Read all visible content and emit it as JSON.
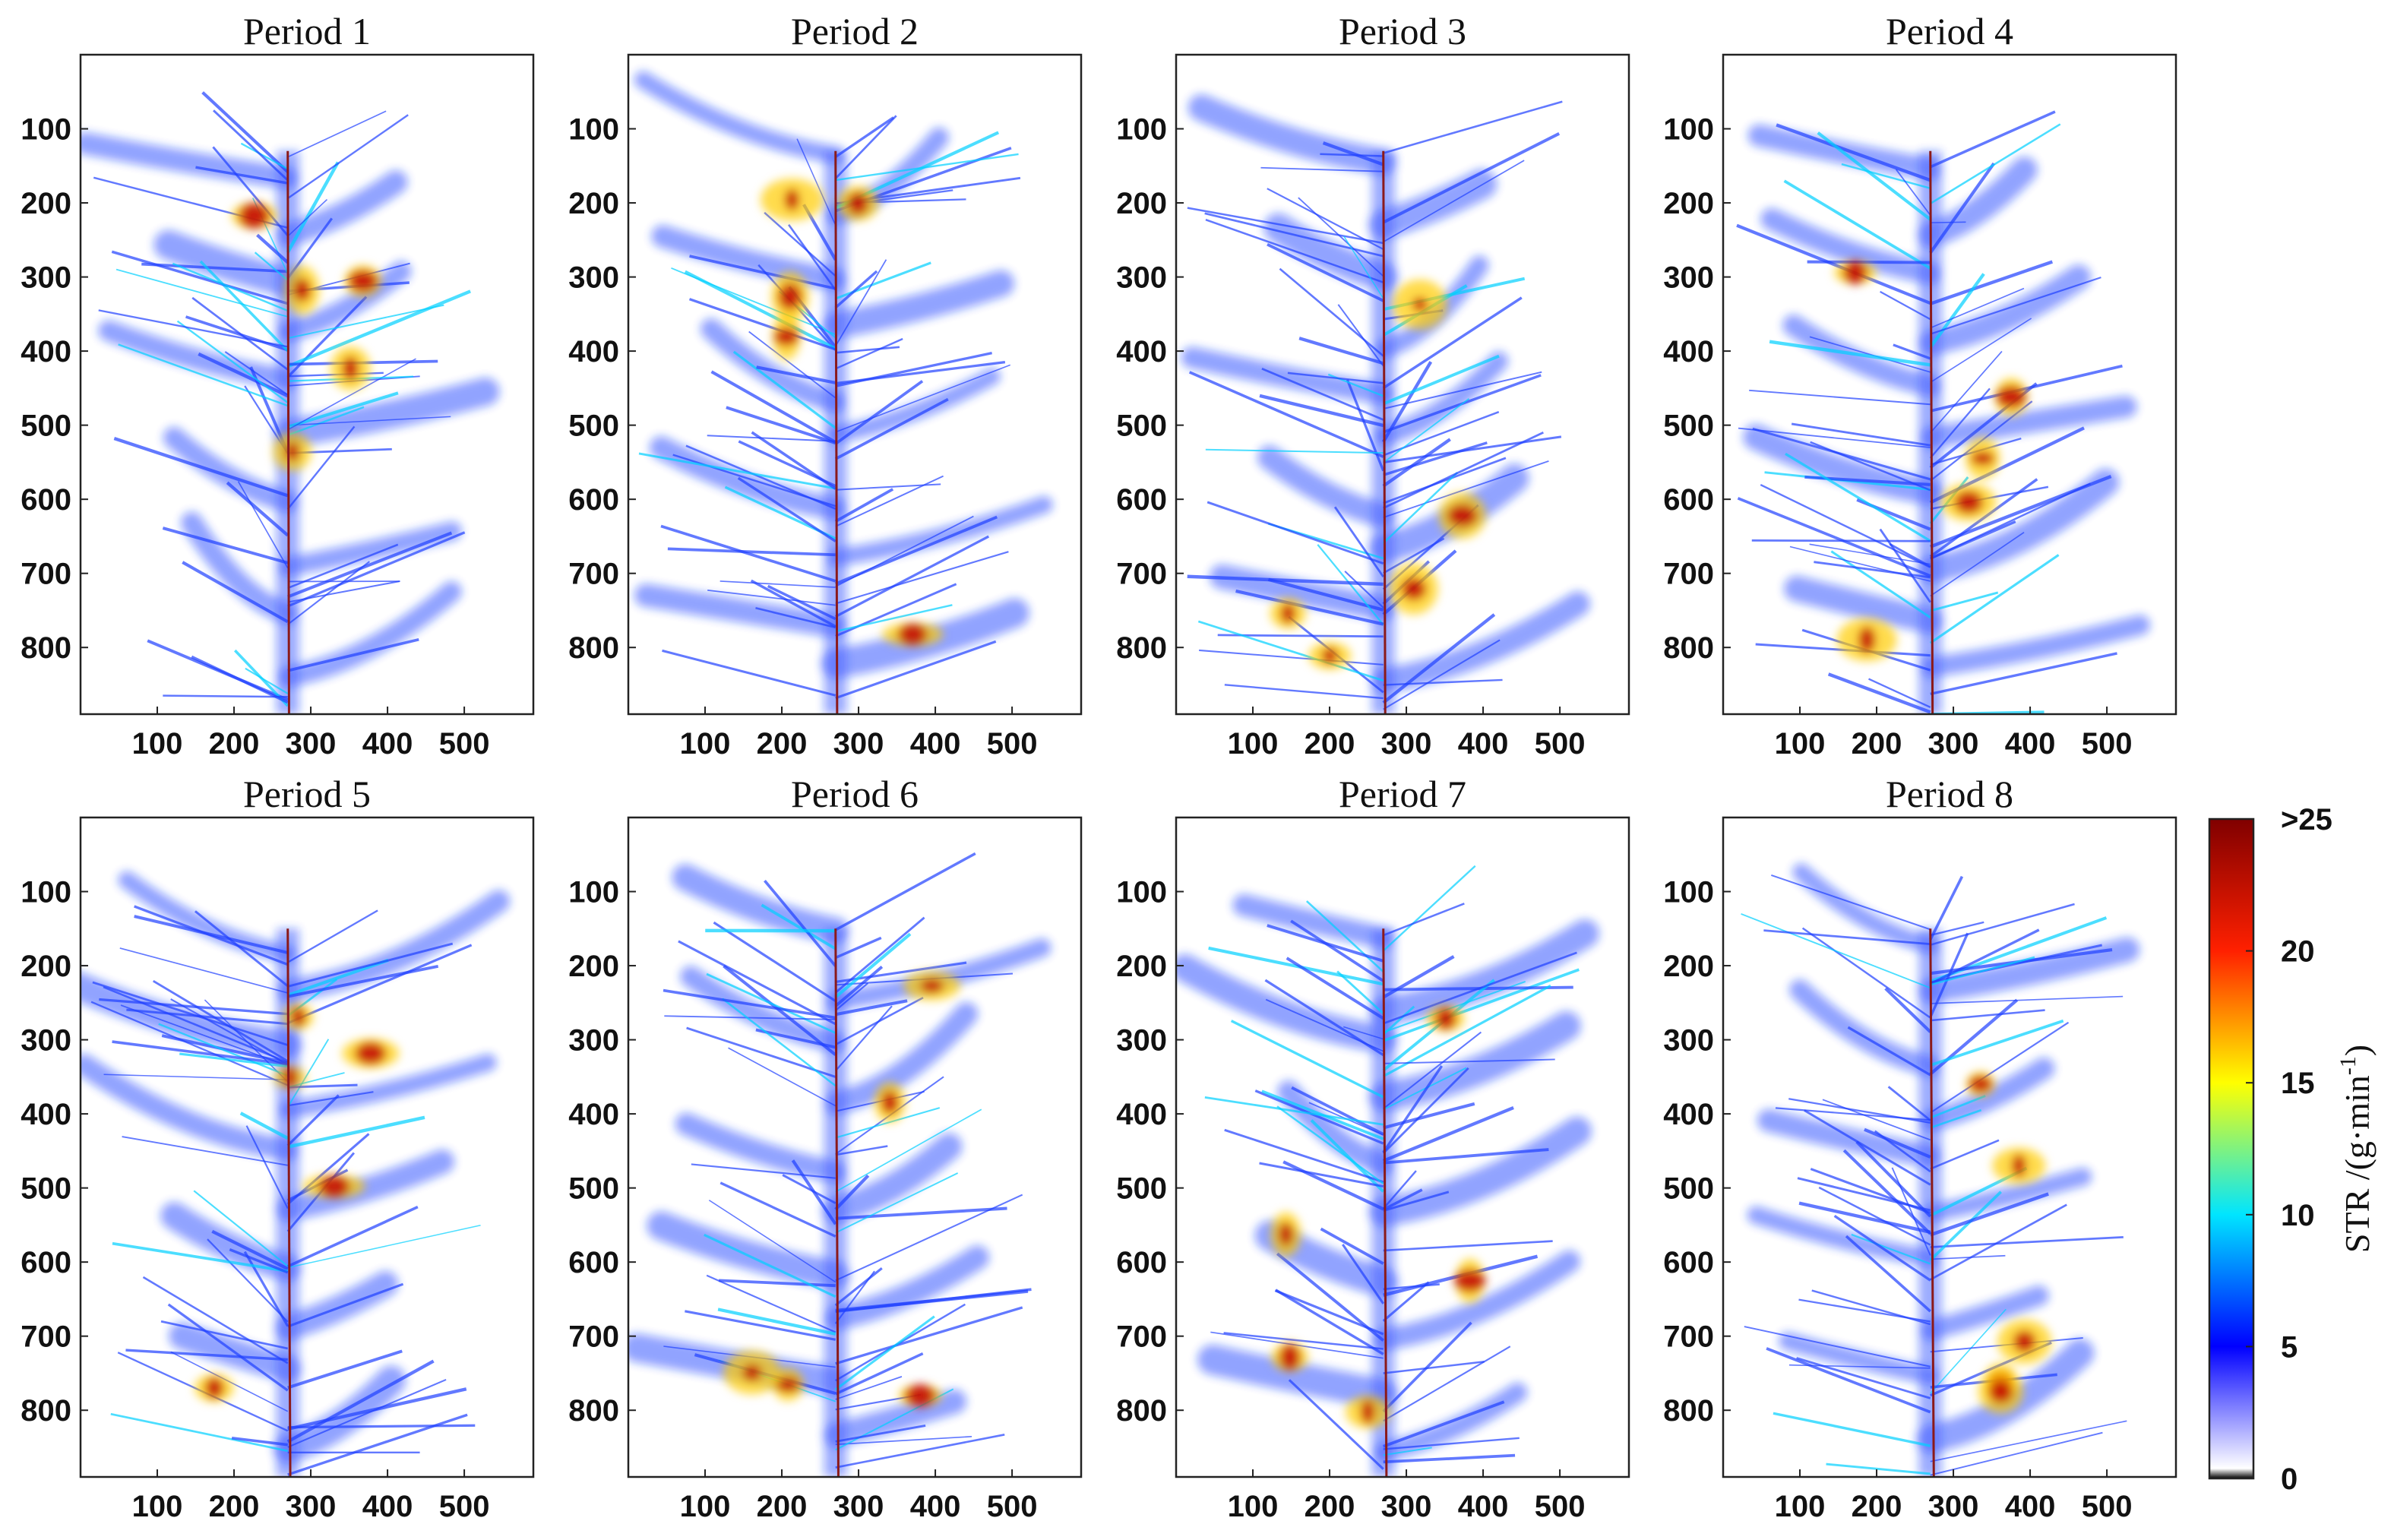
{
  "chart_data": {
    "type": "heatmap",
    "panels": [
      {
        "title": "Period 1"
      },
      {
        "title": "Period 2"
      },
      {
        "title": "Period 3"
      },
      {
        "title": "Period 4"
      },
      {
        "title": "Period 5"
      },
      {
        "title": "Period 6"
      },
      {
        "title": "Period 7"
      },
      {
        "title": "Period 8"
      }
    ],
    "x_ticks": [
      "100",
      "200",
      "300",
      "400",
      "500"
    ],
    "y_ticks": [
      "100",
      "200",
      "300",
      "400",
      "500",
      "600",
      "700",
      "800"
    ],
    "x_tick_values": [
      100,
      200,
      300,
      400,
      500
    ],
    "y_tick_values": [
      100,
      200,
      300,
      400,
      500,
      600,
      700,
      800
    ],
    "xlim": [
      0,
      590
    ],
    "ylim": [
      890,
      0
    ],
    "colorbar": {
      "label": "STR /(g·min",
      "label_sup": "-1",
      "label_end": ")",
      "ticks": [
        "0",
        "5",
        "10",
        "15",
        "20",
        ">25"
      ],
      "tick_values": [
        0,
        5,
        10,
        15,
        20,
        25
      ],
      "range": [
        0,
        25
      ],
      "colors": [
        "#000000",
        "#ffffff",
        "#0000ff",
        "#00ffff",
        "#ffff00",
        "#ff0000",
        "#800000"
      ]
    },
    "layout": "2x4 grid"
  }
}
